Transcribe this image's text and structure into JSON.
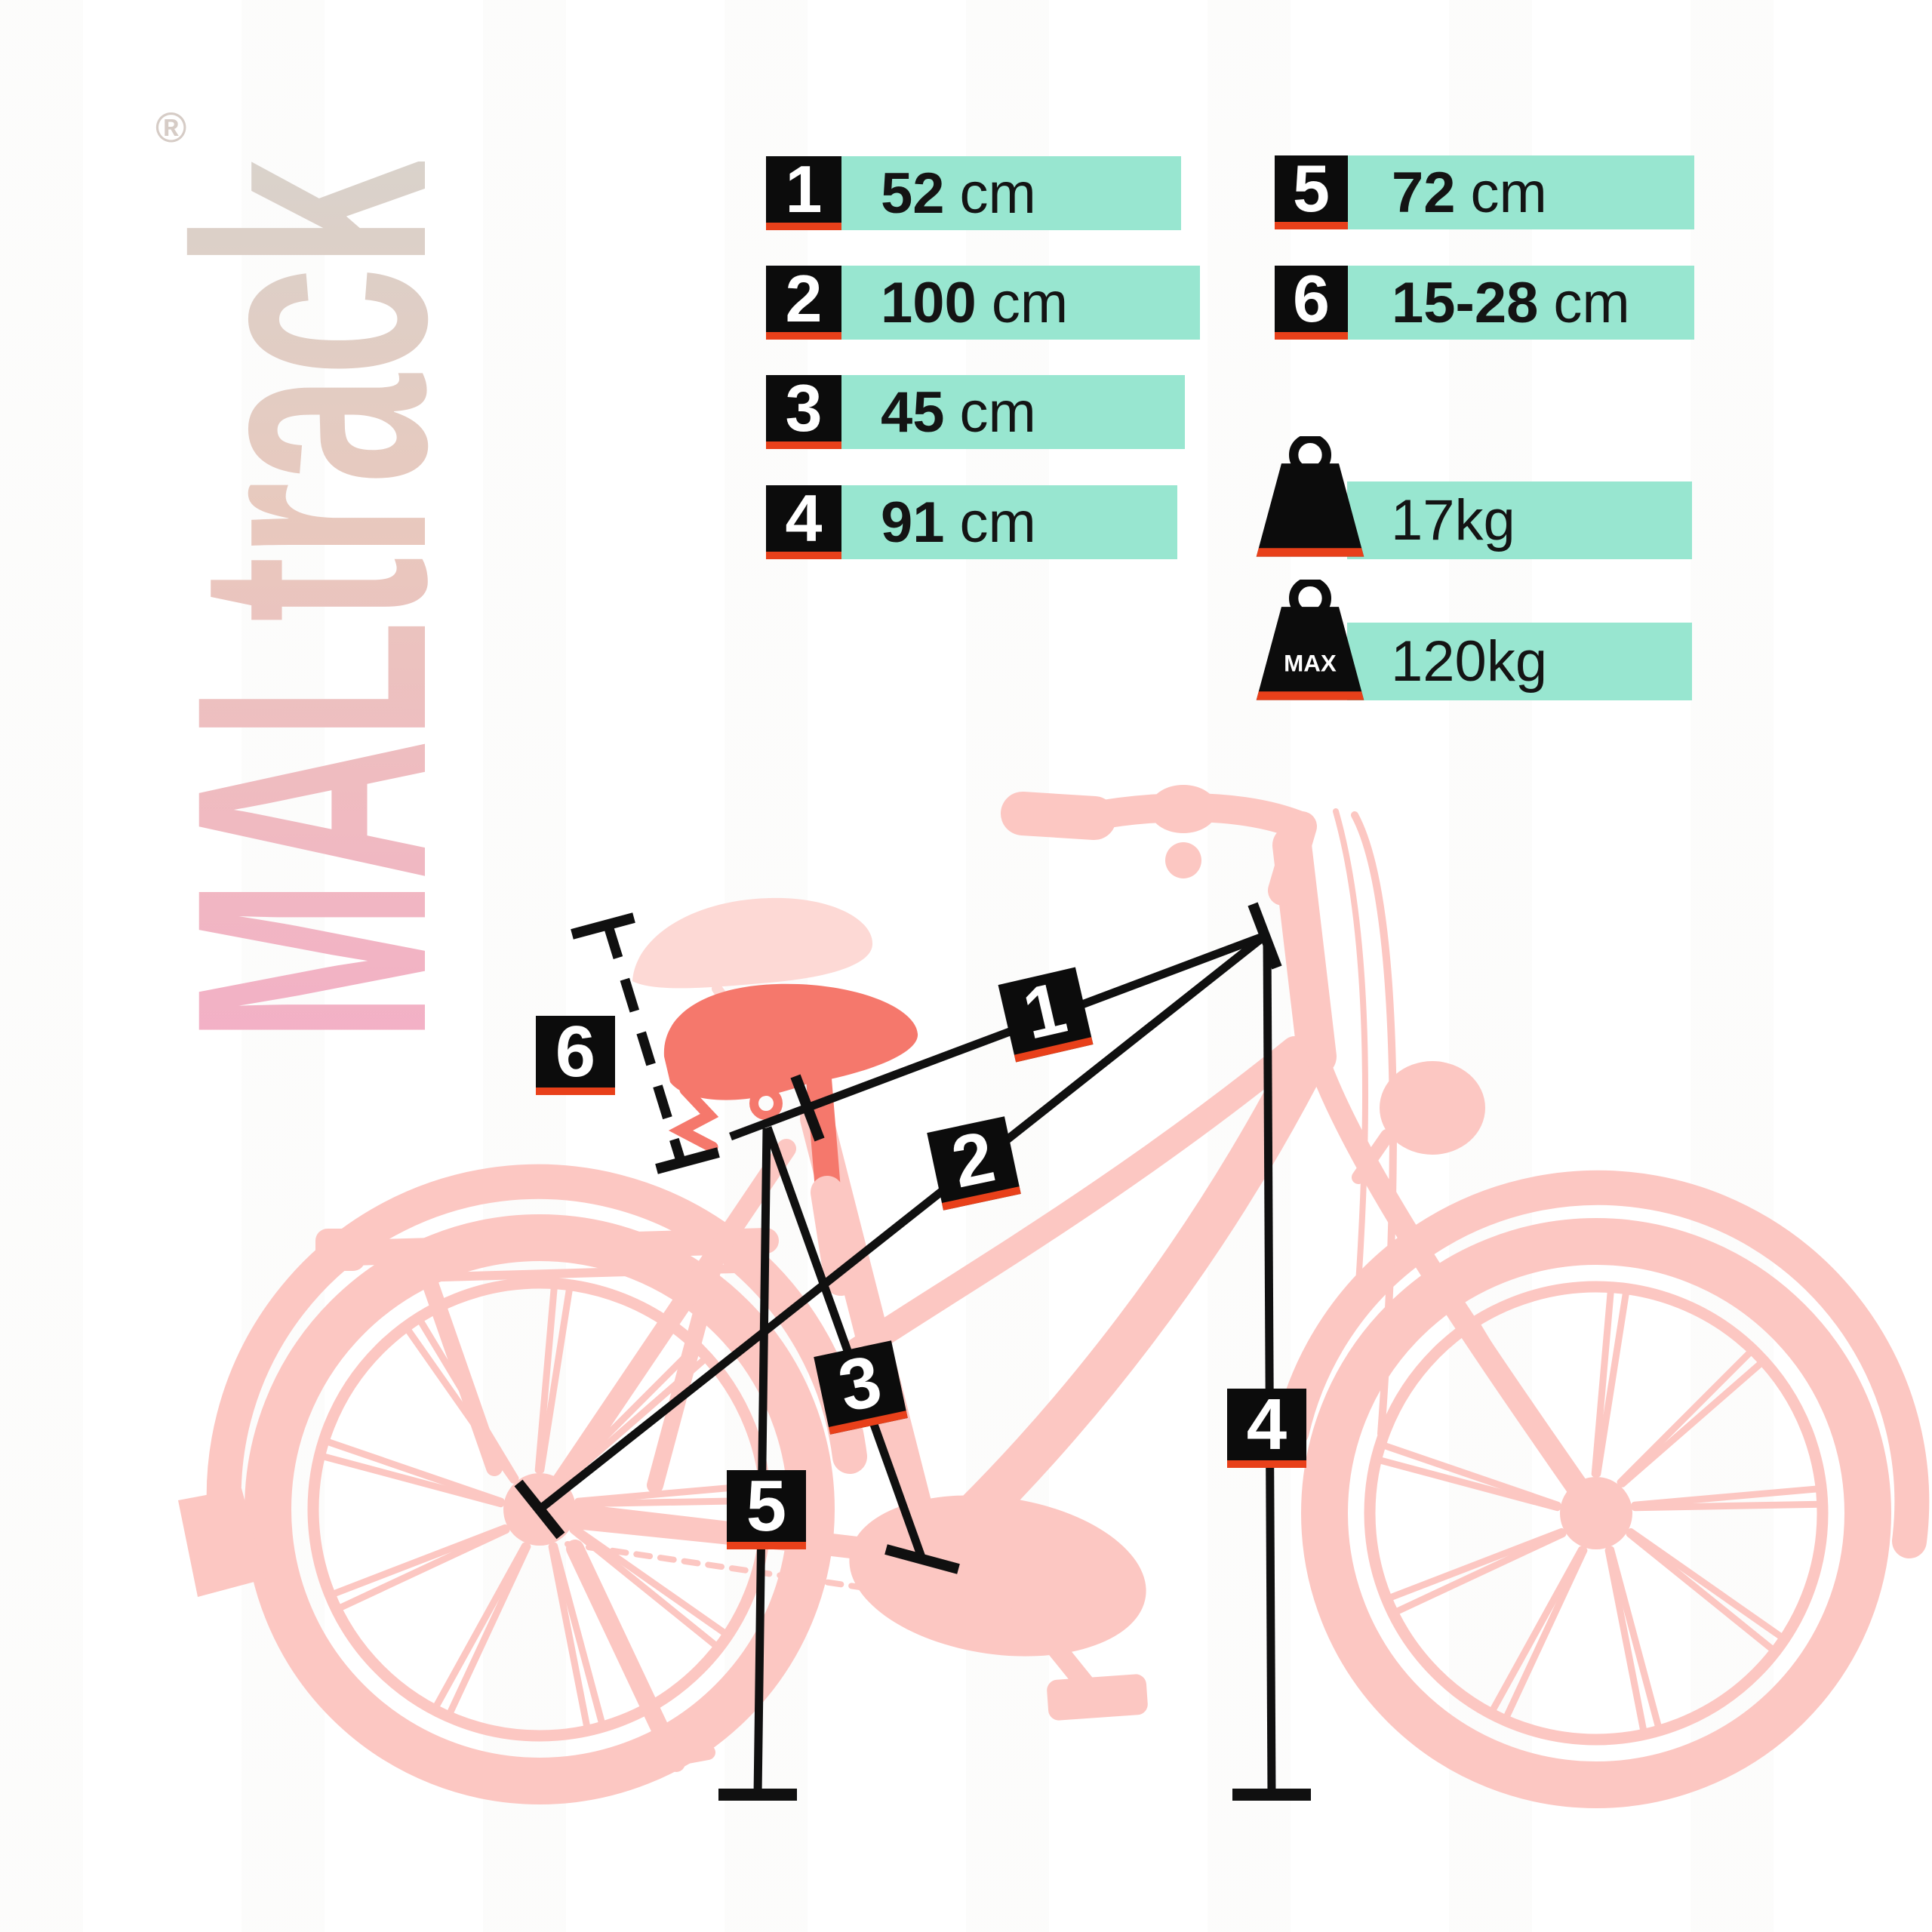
{
  "brand": {
    "name": "MALtrack",
    "registered": "®"
  },
  "specs": {
    "left": [
      {
        "num": "1",
        "value": "52",
        "unit": "cm"
      },
      {
        "num": "2",
        "value": "100",
        "unit": "cm"
      },
      {
        "num": "3",
        "value": "45",
        "unit": "cm"
      },
      {
        "num": "4",
        "value": "91",
        "unit": "cm"
      }
    ],
    "right": [
      {
        "num": "5",
        "value": "72",
        "unit": "cm"
      },
      {
        "num": "6",
        "value": "15-28",
        "unit": "cm"
      }
    ]
  },
  "weights": [
    {
      "value": "17",
      "unit": "kg",
      "badge": "",
      "icon": "weight-icon"
    },
    {
      "value": "120",
      "unit": "kg",
      "badge": "MAX",
      "icon": "weight-max-icon"
    }
  ],
  "diagram": {
    "labels": [
      "1",
      "2",
      "3",
      "4",
      "5",
      "6"
    ]
  },
  "colors": {
    "teal": "#98e6d0",
    "accent_red": "#e8401a",
    "label_black": "#0c0c0c",
    "bike_pink": "#fcc7c2",
    "bike_pink_light": "#fdd9d5",
    "saddle_salmon": "#f5786c"
  }
}
